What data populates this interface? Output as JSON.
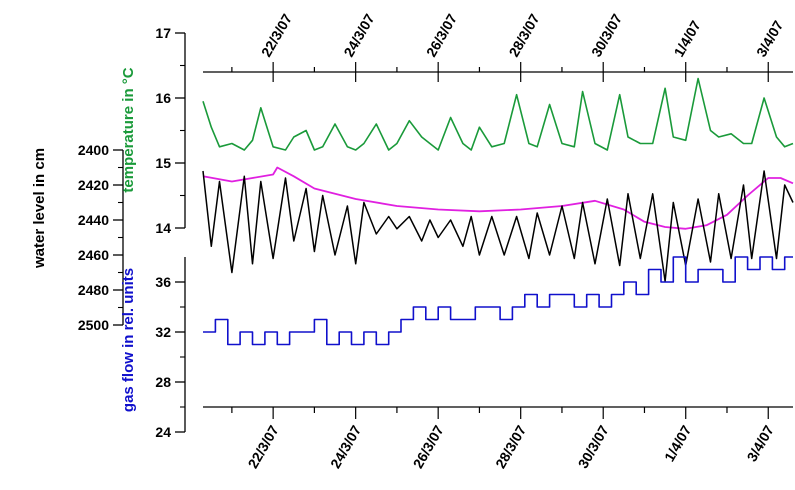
{
  "chart_data": {
    "type": "line",
    "x_tick_labels": [
      "22/3/07",
      "24/3/07",
      "26/3/07",
      "28/3/07",
      "30/3/07",
      "1/4/07",
      "3/4/07"
    ],
    "x_ticks_days_since_20_3_07": [
      2,
      4,
      6,
      8,
      10,
      12,
      14
    ],
    "xlim_days_since_20_3_07": [
      0.3,
      14.6
    ],
    "axes": {
      "temperature": {
        "label": "temperature in °C",
        "color": "#1a9a3a",
        "ticks": [
          14,
          15,
          16,
          17
        ],
        "ylim": [
          14,
          17
        ]
      },
      "water_level": {
        "label": "water level in cm",
        "color": "#000000",
        "ticks": [
          2400,
          2420,
          2440,
          2460,
          2480,
          2500
        ],
        "ylim": [
          2400,
          2500
        ],
        "inverted": true
      },
      "gas_flow": {
        "label": "gas flow in rel. units",
        "color": "#1010cc",
        "ticks": [
          24,
          28,
          32,
          36
        ],
        "ylim": [
          24,
          38
        ]
      }
    },
    "series": [
      {
        "name": "temperature",
        "axis": "temperature",
        "color": "#1a9a3a",
        "x": [
          0.3,
          0.5,
          0.7,
          1.0,
          1.3,
          1.5,
          1.7,
          2.0,
          2.3,
          2.5,
          2.8,
          3.0,
          3.2,
          3.5,
          3.8,
          4.0,
          4.2,
          4.5,
          4.8,
          5.0,
          5.3,
          5.6,
          5.8,
          6.0,
          6.3,
          6.6,
          6.8,
          7.0,
          7.3,
          7.6,
          7.9,
          8.2,
          8.4,
          8.7,
          9.0,
          9.3,
          9.5,
          9.8,
          10.1,
          10.4,
          10.6,
          10.9,
          11.2,
          11.5,
          11.7,
          12.0,
          12.3,
          12.6,
          12.8,
          13.1,
          13.4,
          13.6,
          13.9,
          14.2,
          14.4,
          14.6
        ],
        "values": [
          15.95,
          15.55,
          15.25,
          15.3,
          15.2,
          15.35,
          15.85,
          15.25,
          15.2,
          15.4,
          15.5,
          15.2,
          15.25,
          15.6,
          15.25,
          15.2,
          15.3,
          15.6,
          15.2,
          15.3,
          15.65,
          15.4,
          15.3,
          15.2,
          15.7,
          15.3,
          15.2,
          15.55,
          15.25,
          15.3,
          16.05,
          15.3,
          15.25,
          15.9,
          15.3,
          15.25,
          16.1,
          15.3,
          15.2,
          16.05,
          15.4,
          15.3,
          15.3,
          16.15,
          15.4,
          15.35,
          16.3,
          15.5,
          15.4,
          15.45,
          15.3,
          15.3,
          16.0,
          15.4,
          15.25,
          15.3
        ]
      },
      {
        "name": "water level (smooth)",
        "axis": "water_level",
        "color": "#e020e0",
        "x": [
          0.3,
          1.0,
          1.5,
          2.0,
          2.1,
          2.5,
          3.0,
          4.0,
          5.0,
          6.0,
          7.0,
          8.0,
          9.0,
          9.8,
          10.5,
          11.0,
          11.5,
          12.0,
          12.5,
          13.0,
          13.5,
          14.0,
          14.3,
          14.6
        ],
        "values": [
          2415,
          2418,
          2416,
          2414,
          2410,
          2415,
          2422,
          2428,
          2432,
          2434,
          2435,
          2434,
          2432,
          2429,
          2434,
          2441,
          2444,
          2445,
          2443,
          2437,
          2426,
          2416,
          2416,
          2419
        ]
      },
      {
        "name": "water level",
        "axis": "water_level",
        "color": "#000000",
        "x": [
          0.3,
          0.5,
          0.7,
          1.0,
          1.3,
          1.5,
          1.7,
          2.0,
          2.3,
          2.5,
          2.8,
          3.0,
          3.2,
          3.5,
          3.8,
          4.0,
          4.2,
          4.5,
          4.8,
          5.0,
          5.3,
          5.6,
          5.8,
          6.0,
          6.3,
          6.6,
          6.8,
          7.0,
          7.3,
          7.6,
          7.9,
          8.2,
          8.4,
          8.7,
          9.0,
          9.3,
          9.5,
          9.8,
          10.1,
          10.4,
          10.6,
          10.9,
          11.2,
          11.5,
          11.7,
          12.0,
          12.3,
          12.6,
          12.8,
          13.1,
          13.4,
          13.6,
          13.9,
          14.2,
          14.4,
          14.6
        ],
        "values": [
          2412,
          2455,
          2418,
          2470,
          2415,
          2465,
          2418,
          2462,
          2416,
          2452,
          2422,
          2458,
          2426,
          2460,
          2432,
          2465,
          2430,
          2448,
          2438,
          2445,
          2438,
          2452,
          2440,
          2450,
          2440,
          2455,
          2438,
          2460,
          2438,
          2460,
          2438,
          2462,
          2436,
          2460,
          2432,
          2462,
          2430,
          2465,
          2428,
          2466,
          2425,
          2462,
          2425,
          2475,
          2430,
          2466,
          2428,
          2464,
          2425,
          2462,
          2420,
          2462,
          2412,
          2462,
          2420,
          2430
        ]
      },
      {
        "name": "gas flow",
        "axis": "gas_flow",
        "color": "#1010cc",
        "step": true,
        "x": [
          0.3,
          0.6,
          0.9,
          1.2,
          1.5,
          1.8,
          2.1,
          2.4,
          2.7,
          3.0,
          3.3,
          3.6,
          3.9,
          4.2,
          4.5,
          4.8,
          5.1,
          5.4,
          5.7,
          6.0,
          6.3,
          6.6,
          6.9,
          7.2,
          7.5,
          7.8,
          8.1,
          8.4,
          8.7,
          9.0,
          9.3,
          9.6,
          9.9,
          10.2,
          10.5,
          10.8,
          11.1,
          11.4,
          11.7,
          12.0,
          12.3,
          12.6,
          12.9,
          13.2,
          13.5,
          13.8,
          14.1,
          14.4,
          14.6
        ],
        "values": [
          32,
          33,
          31,
          32,
          31,
          32,
          31,
          32,
          32,
          33,
          31,
          32,
          31,
          32,
          31,
          32,
          33,
          34,
          33,
          34,
          33,
          33,
          34,
          34,
          33,
          34,
          35,
          34,
          35,
          35,
          34,
          35,
          34,
          35,
          36,
          35,
          37,
          36,
          38,
          36,
          37,
          37,
          36,
          38,
          37,
          38,
          37,
          38,
          38
        ]
      }
    ]
  }
}
